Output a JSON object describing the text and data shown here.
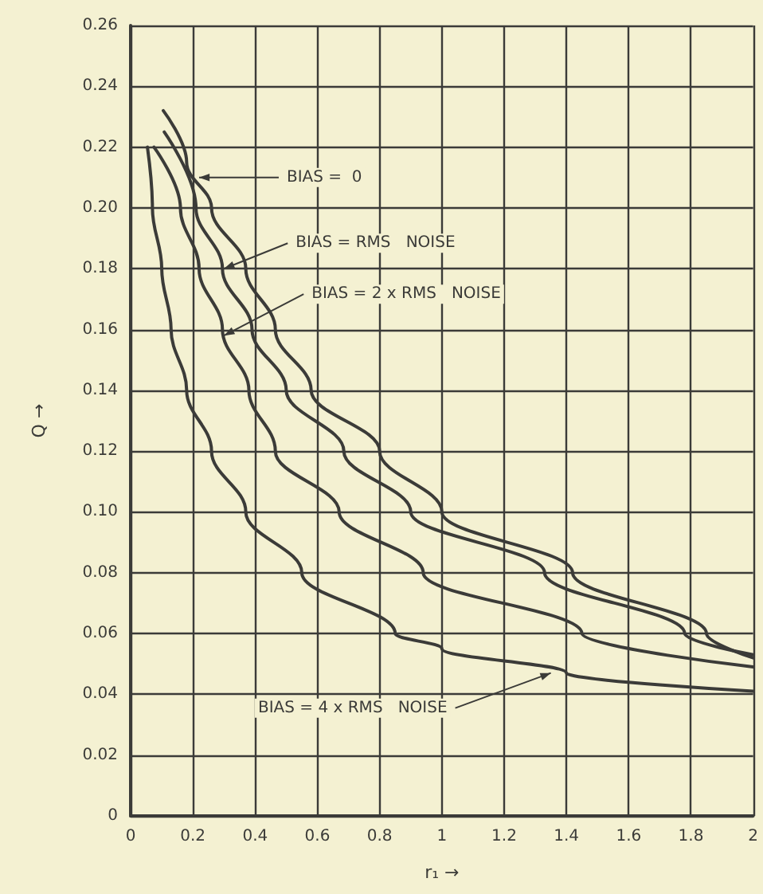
{
  "chart_data": {
    "type": "line",
    "xlabel": "r₁ →",
    "ylabel": "Q →",
    "xlim": [
      0,
      2
    ],
    "ylim": [
      0,
      0.26
    ],
    "xticks": [
      0,
      0.2,
      0.4,
      0.6,
      0.8,
      1,
      1.2,
      1.4,
      1.6,
      1.8,
      2
    ],
    "yticks": [
      0,
      {
        "value": 0.02,
        "label": "0.02"
      },
      {
        "value": 0.04,
        "label": "0.04"
      },
      {
        "value": 0.06,
        "label": "0.06"
      },
      {
        "value": 0.08,
        "label": "0.08"
      },
      {
        "value": 0.1,
        "label": "0.10"
      },
      {
        "value": 0.12,
        "label": "0.12"
      },
      {
        "value": 0.14,
        "label": "0.14"
      },
      {
        "value": 0.16,
        "label": "0.16"
      },
      {
        "value": 0.18,
        "label": "0.18"
      },
      {
        "value": 0.2,
        "label": "0.20"
      },
      {
        "value": 0.22,
        "label": "0.22"
      },
      {
        "value": 0.24,
        "label": "0.24"
      },
      {
        "value": 0.26,
        "label": "0.26"
      }
    ],
    "grid": true,
    "marker": "none",
    "line_style": "solid",
    "series": [
      {
        "color": "#3b3b38",
        "x": [
          0.105,
          0.18,
          0.26,
          0.37,
          0.465,
          0.58,
          0.8,
          1.0,
          1.42,
          1.85,
          2
        ],
        "values": [
          0.232,
          0.215,
          0.2,
          0.18,
          0.16,
          0.14,
          0.12,
          0.1,
          0.08,
          0.06,
          0.052
        ]
      },
      {
        "color": "#3b3b38",
        "x": [
          0.108,
          0.21,
          0.295,
          0.39,
          0.5,
          0.685,
          0.9,
          1.33,
          1.78,
          2
        ],
        "values": [
          0.225,
          0.2,
          0.18,
          0.16,
          0.14,
          0.12,
          0.1,
          0.08,
          0.06,
          0.053
        ]
      },
      {
        "color": "#3b3b38",
        "x": [
          0.075,
          0.16,
          0.22,
          0.295,
          0.38,
          0.465,
          0.67,
          0.94,
          1.45,
          2
        ],
        "values": [
          0.22,
          0.2,
          0.18,
          0.16,
          0.14,
          0.12,
          0.1,
          0.08,
          0.06,
          0.049
        ]
      },
      {
        "color": "#3b3b38",
        "x": [
          0.054,
          0.07,
          0.1,
          0.13,
          0.18,
          0.26,
          0.37,
          0.55,
          0.85,
          1,
          1.4,
          2
        ],
        "values": [
          0.22,
          0.2,
          0.18,
          0.16,
          0.14,
          0.12,
          0.1,
          0.08,
          0.06,
          0.055,
          0.047,
          0.041
        ]
      }
    ],
    "annotations": [
      {
        "text": "BIAS =  0",
        "x": 0.22,
        "y": 0.21
      },
      {
        "text": "BIAS = RMS   NOISE",
        "x": 0.3,
        "y": 0.18
      },
      {
        "text": "BIAS = 2 x RMS   NOISE",
        "x": 0.3,
        "y": 0.158
      },
      {
        "text": "BIAS = 4 x RMS   NOISE",
        "x": 1.35,
        "y": 0.047
      }
    ]
  }
}
